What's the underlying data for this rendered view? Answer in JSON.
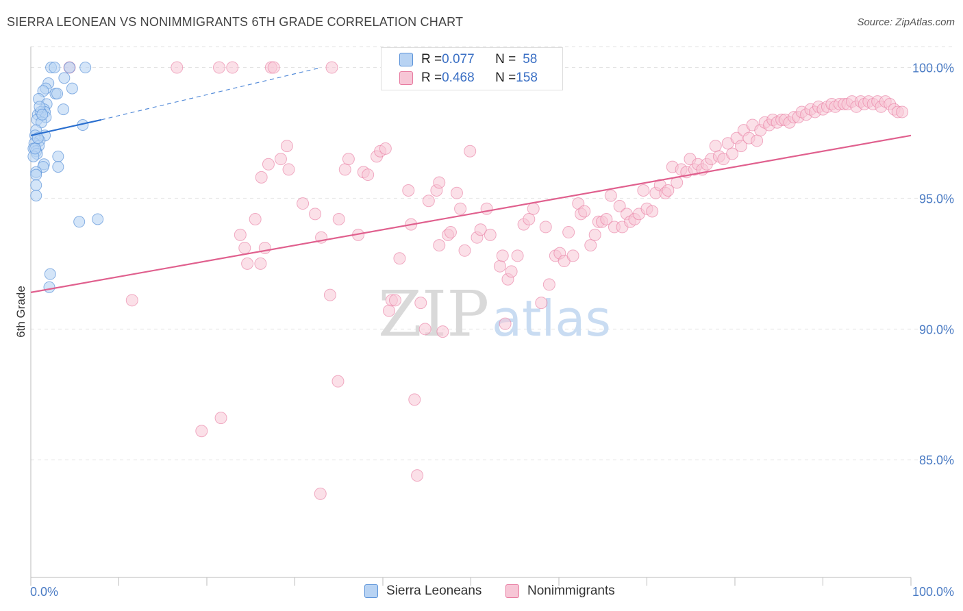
{
  "title": "SIERRA LEONEAN VS NONIMMIGRANTS 6TH GRADE CORRELATION CHART",
  "source": "Source: ZipAtlas.com",
  "watermark": {
    "zip": "ZIP",
    "atlas": "atlas"
  },
  "colors": {
    "blue": "#5b93d9",
    "blue_fill": "#b8d3f3",
    "blue_line": "#2a6fcf",
    "pink": "#e87aa0",
    "pink_fill": "#f7c6d6",
    "pink_line": "#e0608e",
    "tick": "#4a7bc4",
    "grid": "#e3e3e3"
  },
  "legend": {
    "rows": [
      {
        "r_label": "R = ",
        "r_value": "0.077",
        "n_label": "N = ",
        "n_value": "58"
      },
      {
        "r_label": "R = ",
        "r_value": "0.468",
        "n_label": "N = ",
        "n_value": "158"
      }
    ]
  },
  "bottom_legend": [
    "Sierra Leoneans",
    "Nonimmigrants"
  ],
  "chart_data": {
    "type": "scatter",
    "title": "SIERRA LEONEAN VS NONIMMIGRANTS 6TH GRADE CORRELATION CHART",
    "xlabel": "",
    "ylabel": "6th Grade",
    "xlim": [
      0,
      100
    ],
    "ylim": [
      80.5,
      100.8
    ],
    "x_tick_labels": [
      "0.0%",
      "100.0%"
    ],
    "y_ticks": [
      85,
      90,
      95,
      100
    ],
    "y_tick_labels": [
      "85.0%",
      "90.0%",
      "95.0%",
      "100.0%"
    ],
    "grid": "horizontal dashed",
    "legend_position": "top-center",
    "series": [
      {
        "name": "Sierra Leoneans",
        "r": 0.077,
        "n": 58,
        "trend": {
          "x": [
            0,
            8
          ],
          "y": [
            97.4,
            98.0
          ]
        },
        "trend_extension": {
          "x": [
            8,
            33
          ],
          "y": [
            98.0,
            100.0
          ]
        },
        "points": [
          [
            2.3,
            100
          ],
          [
            2.7,
            100
          ],
          [
            4.4,
            100
          ],
          [
            6.2,
            100
          ],
          [
            2.0,
            99.4
          ],
          [
            1.7,
            99.2
          ],
          [
            1.4,
            99.1
          ],
          [
            3.8,
            99.6
          ],
          [
            4.7,
            99.2
          ],
          [
            2.8,
            99.0
          ],
          [
            3.0,
            99.0
          ],
          [
            0.9,
            98.8
          ],
          [
            1.8,
            98.6
          ],
          [
            1.5,
            98.4
          ],
          [
            3.7,
            98.4
          ],
          [
            1.6,
            98.3
          ],
          [
            0.8,
            98.2
          ],
          [
            1.1,
            98.3
          ],
          [
            1.7,
            98.1
          ],
          [
            0.7,
            98.0
          ],
          [
            1.2,
            97.9
          ],
          [
            5.9,
            97.8
          ],
          [
            0.6,
            97.6
          ],
          [
            0.5,
            97.4
          ],
          [
            1.6,
            97.4
          ],
          [
            1.0,
            97.2
          ],
          [
            0.4,
            97.1
          ],
          [
            0.9,
            97.0
          ],
          [
            0.3,
            96.9
          ],
          [
            0.6,
            96.8
          ],
          [
            0.7,
            96.7
          ],
          [
            0.3,
            96.6
          ],
          [
            3.1,
            96.6
          ],
          [
            1.5,
            96.3
          ],
          [
            3.1,
            96.2
          ],
          [
            1.4,
            96.2
          ],
          [
            0.6,
            96.0
          ],
          [
            0.6,
            95.9
          ],
          [
            0.6,
            95.5
          ],
          [
            0.6,
            95.1
          ],
          [
            5.5,
            94.1
          ],
          [
            7.6,
            94.2
          ],
          [
            2.2,
            92.1
          ],
          [
            2.1,
            91.6
          ],
          [
            0.5,
            96.9
          ],
          [
            0.8,
            97.3
          ],
          [
            1.0,
            98.5
          ],
          [
            1.3,
            98.2
          ]
        ]
      },
      {
        "name": "Nonimmigrants",
        "r": 0.468,
        "n": 158,
        "trend": {
          "x": [
            0,
            100
          ],
          "y": [
            91.4,
            97.4
          ]
        },
        "points": [
          [
            4.4,
            100
          ],
          [
            16.6,
            100
          ],
          [
            21.4,
            100
          ],
          [
            22.9,
            100
          ],
          [
            27.3,
            100
          ],
          [
            27.6,
            100
          ],
          [
            34.2,
            100
          ],
          [
            11.5,
            91.1
          ],
          [
            19.4,
            86.1
          ],
          [
            21.6,
            86.6
          ],
          [
            23.8,
            93.6
          ],
          [
            24.3,
            93.1
          ],
          [
            24.6,
            92.5
          ],
          [
            25.5,
            94.2
          ],
          [
            26.1,
            92.5
          ],
          [
            26.2,
            95.8
          ],
          [
            26.6,
            93.1
          ],
          [
            27.0,
            96.3
          ],
          [
            28.4,
            96.5
          ],
          [
            29.1,
            97.0
          ],
          [
            29.3,
            96.1
          ],
          [
            30.9,
            94.8
          ],
          [
            32.3,
            94.4
          ],
          [
            33.0,
            93.5
          ],
          [
            32.9,
            83.7
          ],
          [
            34.0,
            91.3
          ],
          [
            34.9,
            88.0
          ],
          [
            35.0,
            94.2
          ],
          [
            35.7,
            96.1
          ],
          [
            36.1,
            96.5
          ],
          [
            37.2,
            93.6
          ],
          [
            37.8,
            96.0
          ],
          [
            38.3,
            95.9
          ],
          [
            39.3,
            96.6
          ],
          [
            39.7,
            96.8
          ],
          [
            40.3,
            96.9
          ],
          [
            40.7,
            90.7
          ],
          [
            41.0,
            91.1
          ],
          [
            41.4,
            91.1
          ],
          [
            41.9,
            92.7
          ],
          [
            42.9,
            95.3
          ],
          [
            43.2,
            94.0
          ],
          [
            43.6,
            87.3
          ],
          [
            43.9,
            84.4
          ],
          [
            44.3,
            91.0
          ],
          [
            44.8,
            90.0
          ],
          [
            45.2,
            94.9
          ],
          [
            46.1,
            95.3
          ],
          [
            46.4,
            95.6
          ],
          [
            46.8,
            89.9
          ],
          [
            46.4,
            93.2
          ],
          [
            47.4,
            93.6
          ],
          [
            47.7,
            93.7
          ],
          [
            48.4,
            95.2
          ],
          [
            48.8,
            94.6
          ],
          [
            49.3,
            93.0
          ],
          [
            49.9,
            96.8
          ],
          [
            50.7,
            93.5
          ],
          [
            51.1,
            93.8
          ],
          [
            51.8,
            94.6
          ],
          [
            52.2,
            93.6
          ],
          [
            53.3,
            92.4
          ],
          [
            53.6,
            92.8
          ],
          [
            53.9,
            90.2
          ],
          [
            54.2,
            91.9
          ],
          [
            54.6,
            92.2
          ],
          [
            55.3,
            92.8
          ],
          [
            56.0,
            94.0
          ],
          [
            56.6,
            94.2
          ],
          [
            57.1,
            94.6
          ],
          [
            58.0,
            91.0
          ],
          [
            58.5,
            93.9
          ],
          [
            58.9,
            91.7
          ],
          [
            59.6,
            92.8
          ],
          [
            60.1,
            92.9
          ],
          [
            60.6,
            92.6
          ],
          [
            61.1,
            93.7
          ],
          [
            61.6,
            92.8
          ],
          [
            62.2,
            94.8
          ],
          [
            62.5,
            94.4
          ],
          [
            62.9,
            94.5
          ],
          [
            63.6,
            93.2
          ],
          [
            64.1,
            93.6
          ],
          [
            64.5,
            94.1
          ],
          [
            64.9,
            94.1
          ],
          [
            65.4,
            94.2
          ],
          [
            65.9,
            95.1
          ],
          [
            66.3,
            93.9
          ],
          [
            66.9,
            94.7
          ],
          [
            67.2,
            93.9
          ],
          [
            67.7,
            94.4
          ],
          [
            68.1,
            94.1
          ],
          [
            68.6,
            94.2
          ],
          [
            69.1,
            94.4
          ],
          [
            69.6,
            95.3
          ],
          [
            70.0,
            94.6
          ],
          [
            70.6,
            94.5
          ],
          [
            71.0,
            95.2
          ],
          [
            71.5,
            95.5
          ],
          [
            72.1,
            95.2
          ],
          [
            72.4,
            95.3
          ],
          [
            72.9,
            96.2
          ],
          [
            73.4,
            95.6
          ],
          [
            73.9,
            96.1
          ],
          [
            74.5,
            96.0
          ],
          [
            74.9,
            96.5
          ],
          [
            75.4,
            96.1
          ],
          [
            75.8,
            96.3
          ],
          [
            76.3,
            96.1
          ],
          [
            76.8,
            96.3
          ],
          [
            77.3,
            96.5
          ],
          [
            77.8,
            97.0
          ],
          [
            78.2,
            96.6
          ],
          [
            78.7,
            96.5
          ],
          [
            79.2,
            97.1
          ],
          [
            79.7,
            96.7
          ],
          [
            80.2,
            97.3
          ],
          [
            80.7,
            97.0
          ],
          [
            81.0,
            97.6
          ],
          [
            81.6,
            97.3
          ],
          [
            82.0,
            97.8
          ],
          [
            82.5,
            97.2
          ],
          [
            82.9,
            97.6
          ],
          [
            83.4,
            97.9
          ],
          [
            83.9,
            97.8
          ],
          [
            84.3,
            98.0
          ],
          [
            84.8,
            97.9
          ],
          [
            85.3,
            98.0
          ],
          [
            85.7,
            98.0
          ],
          [
            86.2,
            97.9
          ],
          [
            86.7,
            98.1
          ],
          [
            87.2,
            98.1
          ],
          [
            87.6,
            98.3
          ],
          [
            88.1,
            98.2
          ],
          [
            88.6,
            98.4
          ],
          [
            89.1,
            98.3
          ],
          [
            89.5,
            98.5
          ],
          [
            90.0,
            98.4
          ],
          [
            90.5,
            98.5
          ],
          [
            91.0,
            98.6
          ],
          [
            91.4,
            98.5
          ],
          [
            91.9,
            98.6
          ],
          [
            92.4,
            98.6
          ],
          [
            92.8,
            98.6
          ],
          [
            93.3,
            98.7
          ],
          [
            93.8,
            98.5
          ],
          [
            94.3,
            98.7
          ],
          [
            94.7,
            98.6
          ],
          [
            95.2,
            98.7
          ],
          [
            95.7,
            98.6
          ],
          [
            96.2,
            98.7
          ],
          [
            96.6,
            98.5
          ],
          [
            97.1,
            98.7
          ],
          [
            97.6,
            98.6
          ],
          [
            98.1,
            98.4
          ],
          [
            98.5,
            98.3
          ],
          [
            99.0,
            98.3
          ]
        ]
      }
    ]
  }
}
